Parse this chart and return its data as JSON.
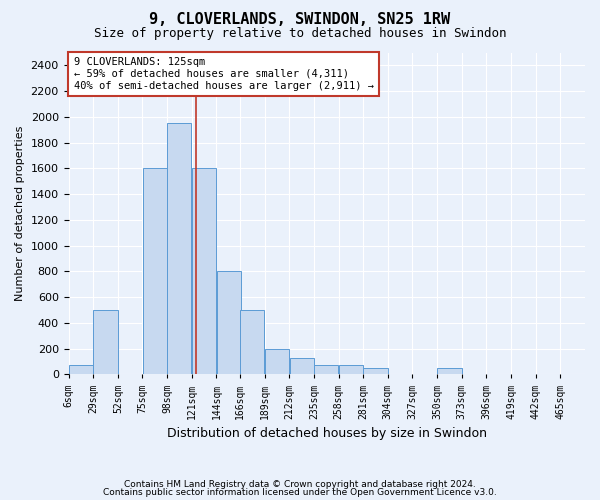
{
  "title": "9, CLOVERLANDS, SWINDON, SN25 1RW",
  "subtitle": "Size of property relative to detached houses in Swindon",
  "xlabel": "Distribution of detached houses by size in Swindon",
  "ylabel": "Number of detached properties",
  "footer1": "Contains HM Land Registry data © Crown copyright and database right 2024.",
  "footer2": "Contains public sector information licensed under the Open Government Licence v3.0.",
  "annotation_line1": "9 CLOVERLANDS: 125sqm",
  "annotation_line2": "← 59% of detached houses are smaller (4,311)",
  "annotation_line3": "40% of semi-detached houses are larger (2,911) →",
  "bar_color": "#c7d9f0",
  "bar_edge_color": "#5b9bd5",
  "vline_color": "#c0392b",
  "vline_x": 125,
  "categories": [
    "6sqm",
    "29sqm",
    "52sqm",
    "75sqm",
    "98sqm",
    "121sqm",
    "144sqm",
    "166sqm",
    "189sqm",
    "212sqm",
    "235sqm",
    "258sqm",
    "281sqm",
    "304sqm",
    "327sqm",
    "350sqm",
    "373sqm",
    "396sqm",
    "419sqm",
    "442sqm",
    "465sqm"
  ],
  "bin_lefts": [
    6,
    29,
    52,
    75,
    98,
    121,
    144,
    166,
    189,
    212,
    235,
    258,
    281,
    304,
    327,
    350,
    373,
    396,
    419,
    442,
    465
  ],
  "bar_heights": [
    75,
    500,
    0,
    1600,
    1950,
    1600,
    800,
    500,
    200,
    125,
    75,
    75,
    50,
    0,
    0,
    50,
    0,
    0,
    0,
    0,
    0
  ],
  "ylim": [
    0,
    2500
  ],
  "yticks": [
    0,
    200,
    400,
    600,
    800,
    1000,
    1200,
    1400,
    1600,
    1800,
    2000,
    2200,
    2400
  ],
  "background_color": "#eaf1fb",
  "grid_color": "#ffffff",
  "annotation_box_color": "#ffffff",
  "annotation_box_edge": "#c0392b"
}
